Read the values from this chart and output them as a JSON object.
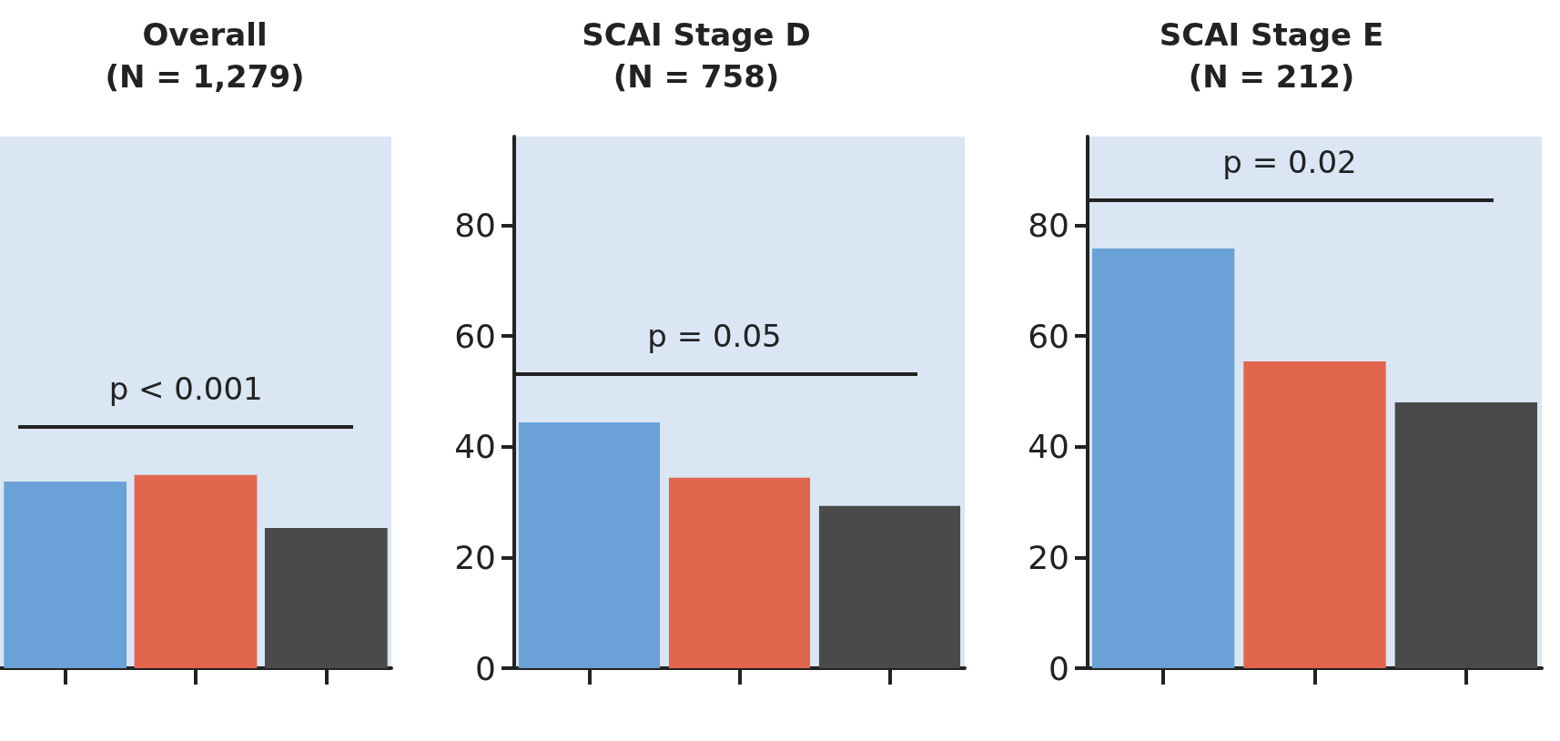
{
  "chart_data": [
    {
      "type": "bar",
      "title": "Overall\n(N = 1,279)",
      "categories": [
        null,
        null,
        null
      ],
      "series": [
        {
          "values": [
            33.7,
            34.9,
            25.3
          ],
          "colors": [
            "#6aa2d8",
            "#e2654e",
            "#4a4a4a"
          ]
        }
      ],
      "ylim": [
        0,
        96
      ],
      "tick_labels": false,
      "grid": false,
      "annotations": [
        "p < 0.001"
      ]
    },
    {
      "type": "bar",
      "title": "SCAI Stage D\n(N = 758)",
      "categories": [
        null,
        null,
        null
      ],
      "series": [
        {
          "values": [
            44.4,
            34.4,
            29.3
          ],
          "colors": [
            "#6aa2d8",
            "#e2654e",
            "#4a4a4a"
          ]
        }
      ],
      "ylim": [
        0,
        96
      ],
      "yticks": [
        0,
        20,
        40,
        60,
        80
      ],
      "tick_labels": "y",
      "grid": false,
      "annotations": [
        "p = 0.05"
      ]
    },
    {
      "type": "bar",
      "title": "SCAI Stage E\n(N = 212)",
      "categories": [
        null,
        null,
        null
      ],
      "series": [
        {
          "values": [
            75.8,
            55.4,
            48.0
          ],
          "colors": [
            "#6aa2d8",
            "#e2654e",
            "#4a4a4a"
          ]
        }
      ],
      "ylim": [
        0,
        96
      ],
      "yticks": [
        0,
        20,
        40,
        60,
        80
      ],
      "tick_labels": "y",
      "grid": false,
      "annotations": [
        "p = 0.02"
      ]
    }
  ]
}
